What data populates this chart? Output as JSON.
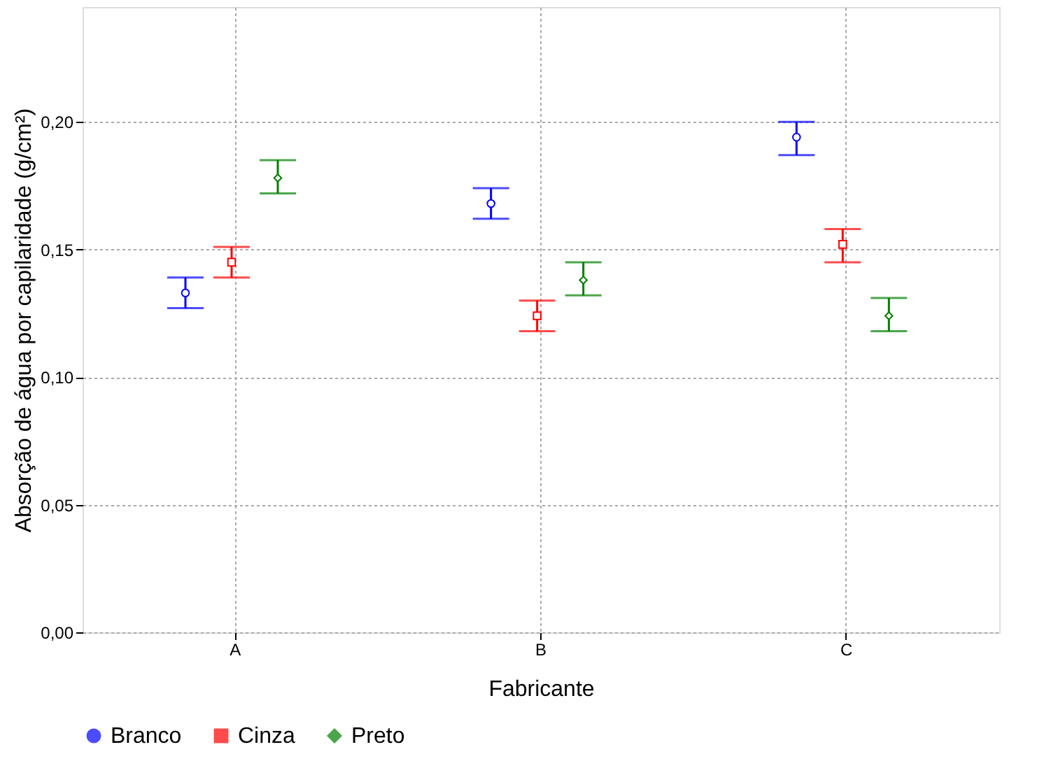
{
  "chart_data": {
    "type": "scatter",
    "xlabel": "Fabricante",
    "ylabel": "Absorção de água por capilaridade (g/cm²)",
    "categories": [
      "A",
      "B",
      "C"
    ],
    "series": [
      {
        "name": "Branco",
        "color": "#0000ff",
        "marker": "circle",
        "values": [
          0.133,
          0.168,
          0.194
        ],
        "errors": [
          [
            0.127,
            0.139
          ],
          [
            0.162,
            0.174
          ],
          [
            0.187,
            0.2
          ]
        ]
      },
      {
        "name": "Cinza",
        "color": "#ff0000",
        "marker": "square",
        "values": [
          0.145,
          0.124,
          0.152
        ],
        "errors": [
          [
            0.139,
            0.151
          ],
          [
            0.118,
            0.13
          ],
          [
            0.145,
            0.158
          ]
        ]
      },
      {
        "name": "Preto",
        "color": "#008000",
        "marker": "diamond",
        "values": [
          0.178,
          0.138,
          0.124
        ],
        "errors": [
          [
            0.172,
            0.185
          ],
          [
            0.132,
            0.145
          ],
          [
            0.118,
            0.131
          ]
        ]
      }
    ],
    "ylim": [
      0,
      0.245
    ],
    "yticks": [
      {
        "value": 0,
        "label": "0,00"
      },
      {
        "value": 0.05,
        "label": "0,05"
      },
      {
        "value": 0.1,
        "label": "0,10"
      },
      {
        "value": 0.15,
        "label": "0,15"
      },
      {
        "value": 0.2,
        "label": "0,20"
      }
    ],
    "grid": true,
    "legend": "bottom"
  }
}
